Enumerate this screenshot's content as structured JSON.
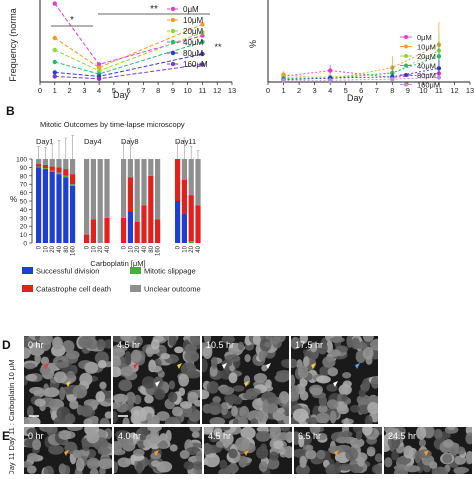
{
  "panel_letters": {
    "B": "B",
    "D": "D",
    "E": "E"
  },
  "panel_a_left": {
    "ylabel": "Frequency (norma",
    "xlabel": "Day",
    "sig_star": "*",
    "sig_double": "**",
    "sig_side": "**",
    "legend": [
      "0μM",
      "10μM",
      "20μM",
      "40μM",
      "80μM",
      "160μM"
    ],
    "colors": [
      "#e040c8",
      "#f29b2b",
      "#93d33b",
      "#2db56e",
      "#2f3fb8",
      "#7a3cc8"
    ]
  },
  "panel_a_right": {
    "ylabel": "%",
    "xlabel": "Day",
    "legend": [
      "0μM",
      "10μM",
      "20μM",
      "40μM",
      "80μM",
      "160μM"
    ],
    "colors": [
      "#e040c8",
      "#f29b2b",
      "#93d33b",
      "#2db56e",
      "#2f3fb8",
      "#b98ee0"
    ]
  },
  "panel_b": {
    "title": "Mitotic Outcomes by time-lapse microscopy",
    "ylabel": "%",
    "xlabel": "Carboplatin [μM]",
    "outcome_legend": [
      {
        "label": "Successful division",
        "color": "#1f3fd1"
      },
      {
        "label": "Mitotic slippage",
        "color": "#3cb43c"
      },
      {
        "label": "Catastrophe cell death",
        "color": "#e0221e"
      },
      {
        "label": "Unclear outcome",
        "color": "#8f8f8f"
      }
    ]
  },
  "panel_d": {
    "side_label": "Day 11 : Carboplatin 10 μM",
    "timestamps": [
      "0 hr",
      "4.5 hr",
      "10.5 hr",
      "17.5 hr"
    ]
  },
  "panel_e": {
    "side_label": "Day 11 :",
    "timestamps": [
      "0 hr",
      "4.0 hr",
      "4.5 hr",
      "6.5 hr",
      "24.5 hr"
    ]
  },
  "chart_data": [
    {
      "type": "line",
      "ylabel": "Frequency (norma",
      "xlabel": "Day",
      "xlim": [
        0,
        13
      ],
      "ylim": [
        0,
        1
      ],
      "x_ticks": [
        0,
        1,
        2,
        3,
        4,
        5,
        6,
        7,
        8,
        9,
        10,
        11,
        12,
        13
      ],
      "y_ticks": [
        0,
        0.1,
        0.2,
        0.3,
        0.4,
        0.5,
        0.6,
        0.7
      ],
      "x": [
        1,
        4,
        11
      ],
      "series": [
        {
          "name": "0μM",
          "values": [
            0.98,
            0.22,
            0.58
          ]
        },
        {
          "name": "10μM",
          "values": [
            0.55,
            0.18,
            0.72
          ]
        },
        {
          "name": "20μM",
          "values": [
            0.4,
            0.14,
            0.62
          ]
        },
        {
          "name": "40μM",
          "values": [
            0.25,
            0.1,
            0.5
          ]
        },
        {
          "name": "80μM",
          "values": [
            0.12,
            0.07,
            0.35
          ]
        },
        {
          "name": "160μM",
          "values": [
            0.07,
            0.04,
            0.22
          ]
        }
      ]
    },
    {
      "type": "line",
      "ylabel": "%",
      "xlabel": "Day",
      "xlim": [
        0,
        13
      ],
      "ylim": [
        0,
        14
      ],
      "x_ticks": [
        0,
        1,
        2,
        3,
        4,
        5,
        6,
        7,
        8,
        9,
        10,
        11,
        12,
        13
      ],
      "x": [
        1,
        4,
        8,
        11
      ],
      "series": [
        {
          "name": "0μM",
          "values": [
            1.0,
            2.0,
            0.8,
            1.5
          ],
          "errors": [
            0.4,
            1.0,
            0.5,
            0.8
          ]
        },
        {
          "name": "10μM",
          "values": [
            1.3,
            0.5,
            2.5,
            6.5
          ],
          "errors": [
            0.6,
            0.4,
            2.0,
            4.0
          ]
        },
        {
          "name": "20μM",
          "values": [
            0.8,
            0.9,
            1.5,
            5.5
          ],
          "errors": [
            0.5,
            0.5,
            1.5,
            3.0
          ]
        },
        {
          "name": "40μM",
          "values": [
            0.6,
            0.6,
            1.6,
            4.5
          ],
          "errors": [
            0.4,
            0.4,
            1.2,
            2.5
          ]
        },
        {
          "name": "80μM",
          "values": [
            0.4,
            0.7,
            0.9,
            2.4
          ],
          "errors": [
            0.3,
            0.4,
            0.6,
            1.5
          ]
        },
        {
          "name": "160μM",
          "values": [
            0.3,
            0.3,
            0.5,
            0.8
          ],
          "errors": [
            0.2,
            0.2,
            0.4,
            0.5
          ]
        }
      ]
    },
    {
      "type": "bar",
      "stacked": true,
      "title": "Mitotic Outcomes by time-lapse microscopy",
      "ylabel": "%",
      "xlabel": "Carboplatin [μM]",
      "ylim": [
        0,
        100
      ],
      "y_ticks": [
        0,
        10,
        20,
        30,
        40,
        50,
        60,
        70,
        80,
        90,
        100
      ],
      "groups": [
        {
          "label": "Day1",
          "categories": [
            "0",
            "10",
            "20",
            "40",
            "80",
            "160"
          ],
          "successful": [
            90,
            88,
            85,
            82,
            78,
            68
          ],
          "slippage": [
            1,
            1,
            1,
            2,
            2,
            2
          ],
          "catastrophe": [
            3,
            4,
            5,
            6,
            8,
            12
          ],
          "unclear": [
            6,
            7,
            9,
            10,
            12,
            18
          ],
          "err": [
            15,
            14,
            18,
            22,
            25,
            28
          ]
        },
        {
          "label": "Day4",
          "categories": [
            "0",
            "10",
            "20",
            "40"
          ],
          "successful": [
            0,
            0,
            0,
            0
          ],
          "slippage": [
            0,
            0,
            0,
            0
          ],
          "catastrophe": [
            10,
            28,
            0,
            30
          ],
          "unclear": [
            90,
            72,
            100,
            70
          ],
          "err": [
            0,
            0,
            0,
            0
          ]
        },
        {
          "label": "Day8",
          "categories": [
            "0",
            "10",
            "20",
            "40",
            "80",
            "160"
          ],
          "successful": [
            0,
            38,
            0,
            0,
            0,
            0
          ],
          "slippage": [
            0,
            0,
            0,
            0,
            0,
            0
          ],
          "catastrophe": [
            30,
            40,
            25,
            45,
            80,
            28
          ],
          "unclear": [
            70,
            22,
            75,
            55,
            20,
            72
          ],
          "err": [
            20,
            25,
            0,
            0,
            0,
            0
          ]
        },
        {
          "label": "Day11",
          "categories": [
            "0",
            "10",
            "20",
            "40"
          ],
          "successful": [
            50,
            35,
            0,
            0
          ],
          "slippage": [
            0,
            0,
            2,
            0
          ],
          "catastrophe": [
            50,
            40,
            55,
            45
          ],
          "unclear": [
            0,
            25,
            43,
            55
          ],
          "err": [
            20,
            25,
            15,
            10
          ]
        }
      ]
    }
  ]
}
